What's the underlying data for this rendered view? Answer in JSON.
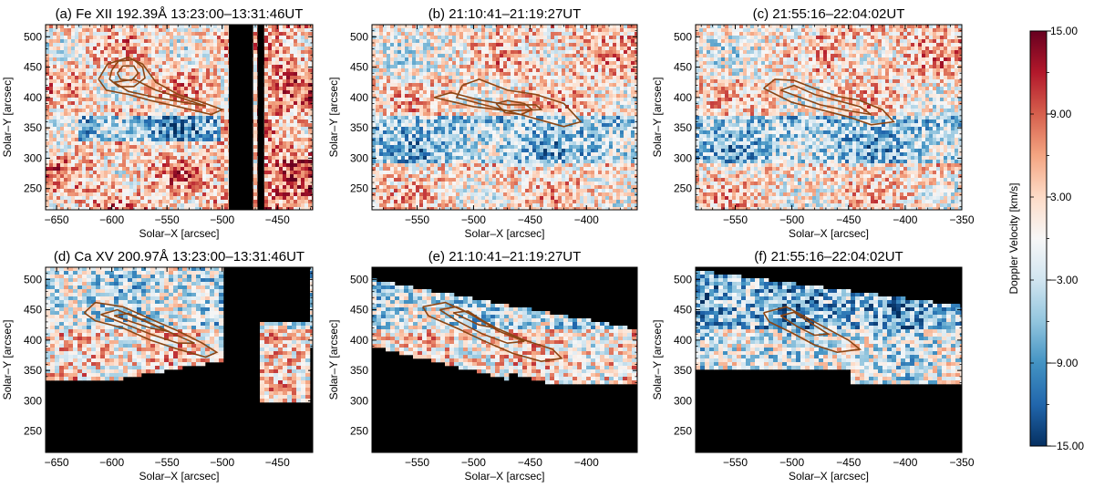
{
  "chart_data": {
    "type": "heatmap",
    "panels": [
      {
        "id": "a",
        "title": "(a) Fe XII 192.39Å  13:23:00–13:31:46UT",
        "xlabel": "Solar–X [arcsec]",
        "ylabel": "Solar–Y [arcsec]",
        "xlim": [
          -660,
          -418
        ],
        "ylim": [
          215,
          520
        ],
        "xticks": [
          -650,
          -600,
          -550,
          -500,
          -450
        ],
        "yticks": [
          250,
          300,
          350,
          400,
          450,
          500
        ],
        "data_gaps_x": [
          [
            -494,
            -472
          ],
          [
            -468,
            -462
          ]
        ],
        "masked_regions": []
      },
      {
        "id": "b",
        "title": "(b)  21:10:41–21:19:27UT",
        "xlabel": "Solar–X [arcsec]",
        "ylabel": "Solar–Y [arcsec]",
        "xlim": [
          -590,
          -355
        ],
        "ylim": [
          215,
          520
        ],
        "xticks": [
          -550,
          -500,
          -450,
          -400
        ],
        "yticks": [
          250,
          300,
          350,
          400,
          450,
          500
        ],
        "data_gaps_x": [],
        "masked_regions": []
      },
      {
        "id": "c",
        "title": "(c)  21:55:16–22:04:02UT",
        "xlabel": "Solar–X [arcsec]",
        "ylabel": "Solar–Y [arcsec]",
        "xlim": [
          -585,
          -350
        ],
        "ylim": [
          215,
          520
        ],
        "xticks": [
          -550,
          -500,
          -450,
          -400,
          -350
        ],
        "yticks": [
          250,
          300,
          350,
          400,
          450,
          500
        ],
        "data_gaps_x": [],
        "masked_regions": []
      },
      {
        "id": "d",
        "title": "(d) Ca XV 200.97Å  13:23:00–13:31:46UT",
        "xlabel": "Solar–X [arcsec]",
        "ylabel": "Solar–Y [arcsec]",
        "xlim": [
          -660,
          -418
        ],
        "ylim": [
          215,
          520
        ],
        "xticks": [
          -650,
          -600,
          -550,
          -500,
          -450
        ],
        "yticks": [
          250,
          300,
          350,
          400,
          450,
          500
        ],
        "data_gaps_x": [],
        "masked_regions": [
          "d"
        ]
      },
      {
        "id": "e",
        "title": "(e)  21:10:41–21:19:27UT",
        "xlabel": "Solar–X [arcsec]",
        "ylabel": "Solar–Y [arcsec]",
        "xlim": [
          -590,
          -355
        ],
        "ylim": [
          215,
          520
        ],
        "xticks": [
          -550,
          -500,
          -450,
          -400
        ],
        "yticks": [
          250,
          300,
          350,
          400,
          450,
          500
        ],
        "data_gaps_x": [],
        "masked_regions": [
          "e"
        ]
      },
      {
        "id": "f",
        "title": "(f)  21:55:16–22:04:02UT",
        "xlabel": "Solar–X [arcsec]",
        "ylabel": "Solar–Y [arcsec]",
        "xlim": [
          -585,
          -350
        ],
        "ylim": [
          215,
          520
        ],
        "xticks": [
          -550,
          -500,
          -450,
          -400,
          -350
        ],
        "yticks": [
          250,
          300,
          350,
          400,
          450,
          500
        ],
        "data_gaps_x": [],
        "masked_regions": [
          "f"
        ]
      }
    ],
    "colorbar": {
      "label": "Doppler Velocity [km/s]",
      "range": [
        -15,
        15
      ],
      "ticks": [
        15,
        9,
        3,
        -3,
        -9,
        -15
      ],
      "tick_labels": [
        "15.00",
        "9.00",
        "3.00",
        "−3.00",
        "−9.00",
        "−15.00"
      ],
      "colormap": [
        "#053061",
        "#2166ac",
        "#4393c3",
        "#92c5de",
        "#d1e5f0",
        "#f7f7f7",
        "#fddbc7",
        "#f4a582",
        "#d6604d",
        "#b2182b",
        "#67001f"
      ]
    },
    "contour_color": "#8b4513",
    "contour_lines": {
      "a": [
        [
          [
            -600,
            445
          ],
          [
            -594,
            460
          ],
          [
            -580,
            462
          ],
          [
            -572,
            450
          ],
          [
            -570,
            432
          ],
          [
            -580,
            418
          ],
          [
            -594,
            418
          ],
          [
            -602,
            430
          ],
          [
            -600,
            445
          ]
        ],
        [
          [
            -595,
            440
          ],
          [
            -590,
            452
          ],
          [
            -580,
            452
          ],
          [
            -576,
            440
          ],
          [
            -582,
            428
          ],
          [
            -592,
            430
          ],
          [
            -595,
            440
          ]
        ],
        [
          [
            -612,
            430
          ],
          [
            -604,
            455
          ],
          [
            -585,
            466
          ],
          [
            -572,
            455
          ],
          [
            -560,
            425
          ],
          [
            -540,
            405
          ],
          [
            -515,
            390
          ],
          [
            -500,
            380
          ],
          [
            -510,
            372
          ],
          [
            -540,
            385
          ],
          [
            -565,
            395
          ],
          [
            -585,
            405
          ],
          [
            -605,
            412
          ],
          [
            -612,
            430
          ]
        ],
        [
          [
            -598,
            425
          ],
          [
            -580,
            430
          ],
          [
            -560,
            412
          ],
          [
            -535,
            398
          ],
          [
            -515,
            386
          ],
          [
            -535,
            392
          ],
          [
            -560,
            400
          ],
          [
            -585,
            410
          ],
          [
            -598,
            425
          ]
        ]
      ],
      "b": [
        [
          [
            -480,
            390
          ],
          [
            -470,
            395
          ],
          [
            -455,
            390
          ],
          [
            -448,
            380
          ],
          [
            -458,
            372
          ],
          [
            -472,
            375
          ],
          [
            -480,
            390
          ]
        ],
        [
          [
            -510,
            420
          ],
          [
            -495,
            430
          ],
          [
            -470,
            412
          ],
          [
            -445,
            405
          ],
          [
            -420,
            390
          ],
          [
            -405,
            360
          ],
          [
            -420,
            352
          ],
          [
            -445,
            365
          ],
          [
            -470,
            378
          ],
          [
            -495,
            390
          ],
          [
            -515,
            400
          ],
          [
            -510,
            420
          ]
        ],
        [
          [
            -535,
            400
          ],
          [
            -520,
            408
          ],
          [
            -495,
            396
          ],
          [
            -470,
            388
          ],
          [
            -445,
            388
          ],
          [
            -440,
            380
          ],
          [
            -470,
            378
          ],
          [
            -500,
            385
          ],
          [
            -535,
            400
          ]
        ]
      ],
      "c": [
        [
          [
            -525,
            415
          ],
          [
            -515,
            430
          ],
          [
            -498,
            428
          ],
          [
            -480,
            415
          ],
          [
            -460,
            402
          ],
          [
            -440,
            395
          ],
          [
            -420,
            380
          ],
          [
            -410,
            360
          ],
          [
            -430,
            355
          ],
          [
            -450,
            368
          ],
          [
            -475,
            380
          ],
          [
            -500,
            392
          ],
          [
            -525,
            415
          ]
        ],
        [
          [
            -510,
            412
          ],
          [
            -498,
            420
          ],
          [
            -480,
            405
          ],
          [
            -460,
            395
          ],
          [
            -440,
            385
          ],
          [
            -430,
            372
          ],
          [
            -450,
            378
          ],
          [
            -475,
            388
          ],
          [
            -510,
            412
          ]
        ]
      ],
      "d": [
        [
          [
            -625,
            445
          ],
          [
            -615,
            462
          ],
          [
            -590,
            455
          ],
          [
            -565,
            435
          ],
          [
            -540,
            415
          ],
          [
            -518,
            395
          ],
          [
            -505,
            380
          ],
          [
            -515,
            372
          ],
          [
            -540,
            385
          ],
          [
            -565,
            400
          ],
          [
            -590,
            420
          ],
          [
            -615,
            432
          ],
          [
            -625,
            445
          ]
        ],
        [
          [
            -610,
            442
          ],
          [
            -595,
            450
          ],
          [
            -575,
            435
          ],
          [
            -550,
            415
          ],
          [
            -525,
            395
          ],
          [
            -540,
            395
          ],
          [
            -565,
            410
          ],
          [
            -590,
            428
          ],
          [
            -610,
            442
          ]
        ],
        [
          [
            -598,
            440
          ],
          [
            -585,
            444
          ],
          [
            -570,
            432
          ],
          [
            -548,
            414
          ],
          [
            -565,
            420
          ],
          [
            -585,
            432
          ],
          [
            -598,
            440
          ]
        ]
      ],
      "e": [
        [
          [
            -545,
            455
          ],
          [
            -525,
            462
          ],
          [
            -505,
            445
          ],
          [
            -480,
            420
          ],
          [
            -455,
            400
          ],
          [
            -430,
            385
          ],
          [
            -422,
            370
          ],
          [
            -440,
            365
          ],
          [
            -465,
            378
          ],
          [
            -490,
            398
          ],
          [
            -515,
            420
          ],
          [
            -540,
            440
          ],
          [
            -545,
            455
          ]
        ],
        [
          [
            -530,
            450
          ],
          [
            -515,
            455
          ],
          [
            -500,
            440
          ],
          [
            -478,
            415
          ],
          [
            -455,
            398
          ],
          [
            -470,
            395
          ],
          [
            -492,
            410
          ],
          [
            -515,
            432
          ],
          [
            -530,
            450
          ]
        ],
        [
          [
            -518,
            445
          ],
          [
            -505,
            448
          ],
          [
            -492,
            432
          ],
          [
            -480,
            420
          ],
          [
            -495,
            425
          ],
          [
            -510,
            438
          ],
          [
            -518,
            445
          ]
        ]
      ],
      "f": [
        [
          [
            -525,
            445
          ],
          [
            -505,
            455
          ],
          [
            -490,
            440
          ],
          [
            -470,
            420
          ],
          [
            -450,
            400
          ],
          [
            -440,
            385
          ],
          [
            -460,
            380
          ],
          [
            -480,
            392
          ],
          [
            -500,
            412
          ],
          [
            -520,
            430
          ],
          [
            -525,
            445
          ]
        ],
        [
          [
            -510,
            440
          ],
          [
            -498,
            446
          ],
          [
            -485,
            430
          ],
          [
            -468,
            410
          ],
          [
            -480,
            408
          ],
          [
            -495,
            422
          ],
          [
            -510,
            440
          ]
        ]
      ]
    }
  }
}
